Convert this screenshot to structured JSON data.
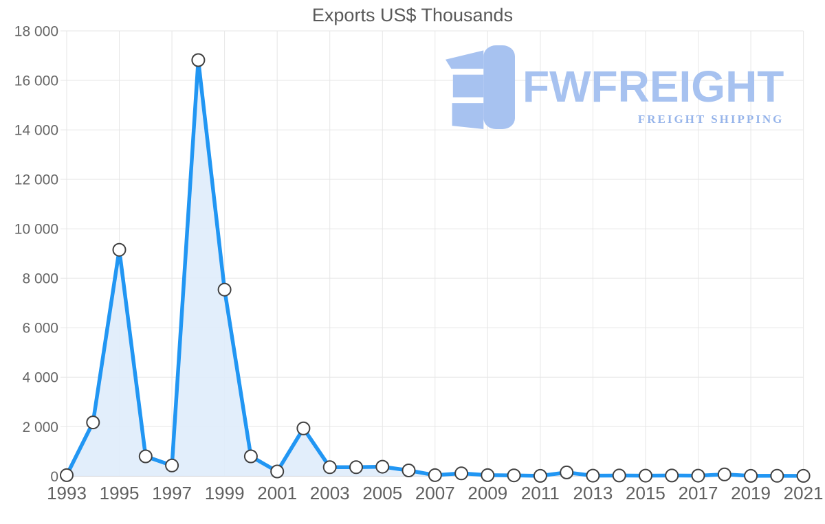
{
  "title": "Exports US$ Thousands",
  "watermark": {
    "brand": "FWFREIGHT",
    "tagline": "FREIGHT SHIPPING",
    "logo_color": "#a7c2f0",
    "tagline_color": "#96b4ea"
  },
  "colors": {
    "line": "#2196f3",
    "area_fill": "#dfecfb",
    "marker_fill": "#ffffff",
    "marker_stroke": "#404040",
    "grid": "#e6e6e6",
    "axis_line": "#c2c2c2",
    "y_label_text": "#666666",
    "x_label_text": "#606060",
    "title_text": "#595959"
  },
  "chart_data": {
    "type": "area",
    "title": "Exports US$ Thousands",
    "xlabel": "",
    "ylabel": "",
    "x": [
      1993,
      1994,
      1995,
      1996,
      1997,
      1998,
      1999,
      2000,
      2001,
      2002,
      2003,
      2004,
      2005,
      2006,
      2007,
      2008,
      2009,
      2010,
      2011,
      2012,
      2013,
      2014,
      2015,
      2016,
      2017,
      2018,
      2019,
      2020,
      2021
    ],
    "values": [
      40,
      2170,
      9150,
      800,
      430,
      16820,
      7540,
      800,
      190,
      1930,
      360,
      360,
      380,
      230,
      40,
      110,
      40,
      30,
      10,
      150,
      20,
      25,
      20,
      25,
      20,
      70,
      10,
      15,
      10
    ],
    "ylim": [
      0,
      18000
    ],
    "ytick_step": 2000,
    "ytick_labels": [
      "0",
      "2 000",
      "4 000",
      "6 000",
      "8 000",
      "10 000",
      "12 000",
      "14 000",
      "16 000",
      "18 000"
    ],
    "xtick_years": [
      1993,
      1995,
      1997,
      1999,
      2001,
      2003,
      2005,
      2007,
      2009,
      2011,
      2013,
      2015,
      2017,
      2019,
      2021
    ],
    "grid": true,
    "legend": false
  }
}
